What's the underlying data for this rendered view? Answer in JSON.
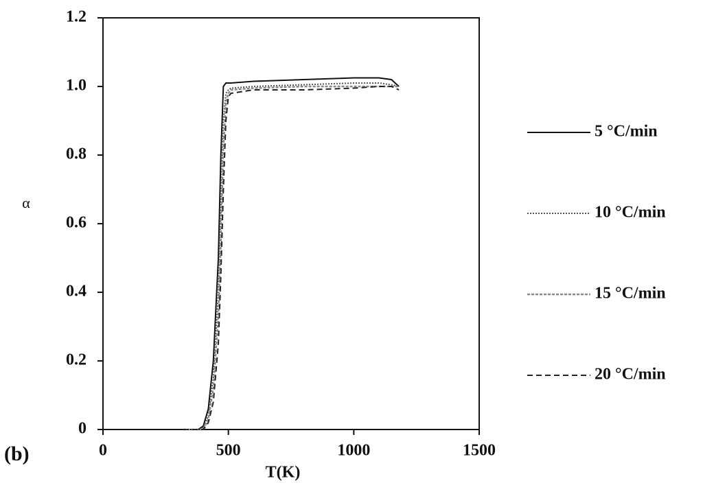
{
  "chart_data": {
    "type": "line",
    "annotation": "(b)",
    "x_label": "T(K)",
    "y_label": "α",
    "x": [
      320,
      380,
      400,
      420,
      440,
      460,
      470,
      480,
      490,
      500,
      510,
      600,
      800,
      1000,
      1100,
      1150,
      1180
    ],
    "series": [
      {
        "name": "5 °C/min",
        "color": "#111111",
        "values": [
          0,
          0,
          0.01,
          0.06,
          0.2,
          0.5,
          0.8,
          1.0,
          1.01,
          1.01,
          1.01,
          1.015,
          1.02,
          1.025,
          1.025,
          1.02,
          1.0
        ]
      },
      {
        "name": "10 °C/min",
        "color": "#555555",
        "values": [
          0,
          0,
          0.005,
          0.04,
          0.15,
          0.4,
          0.65,
          0.9,
          0.98,
          0.99,
          0.995,
          1.0,
          1.005,
          1.01,
          1.01,
          1.005,
          1.0
        ]
      },
      {
        "name": "15 °C/min",
        "color": "#888888",
        "values": [
          0,
          0,
          0,
          0.03,
          0.12,
          0.33,
          0.55,
          0.82,
          0.95,
          0.98,
          0.99,
          0.995,
          1.0,
          1.0,
          1.0,
          1.0,
          1.0
        ]
      },
      {
        "name": "20 °C/min",
        "color": "#222222",
        "values": [
          0,
          0,
          0,
          0.02,
          0.08,
          0.25,
          0.45,
          0.7,
          0.9,
          0.97,
          0.98,
          0.99,
          0.99,
          0.995,
          1.0,
          1.0,
          0.99
        ]
      }
    ],
    "xlim": [
      0,
      1500
    ],
    "xticks": [
      0,
      500,
      1000,
      1500
    ],
    "ylim": [
      0,
      1.2
    ],
    "yticks": [
      0,
      0.2,
      0.4,
      0.6,
      0.8,
      {
        "value": 1,
        "label": "1.0"
      },
      1.2
    ]
  }
}
